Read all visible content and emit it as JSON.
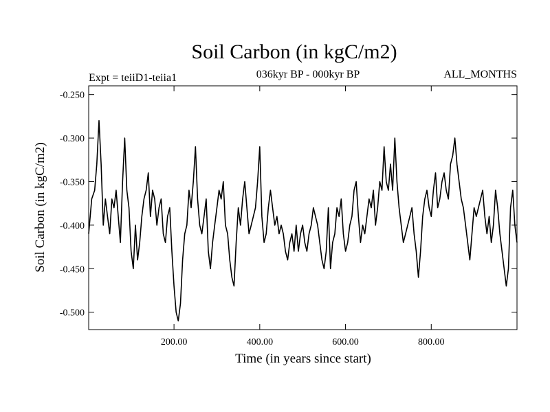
{
  "chart_data": {
    "type": "line",
    "title": "Soil Carbon (in kgC/m2)",
    "subtitle_left": "Expt = teiiD1-teiia1",
    "subtitle_center": "036kyr BP - 000kyr BP",
    "subtitle_right": "ALL_MONTHS",
    "xlabel": "Time (in years since start)",
    "ylabel": "Soil Carbon (in kgC/m2)",
    "xlim": [
      1,
      1000
    ],
    "ylim": [
      -0.52,
      -0.24
    ],
    "xticks": [
      200,
      400,
      600,
      800
    ],
    "xtick_labels": [
      "200.00",
      "400.00",
      "600.00",
      "800.00"
    ],
    "yticks": [
      -0.25,
      -0.3,
      -0.35,
      -0.4,
      -0.45,
      -0.5
    ],
    "ytick_labels": [
      "-0.250",
      "-0.300",
      "-0.350",
      "-0.400",
      "-0.450",
      "-0.500"
    ],
    "grid": false,
    "series": [
      {
        "color": "#000000",
        "x": [
          1,
          8,
          15,
          20,
          25,
          30,
          35,
          40,
          45,
          50,
          55,
          60,
          65,
          70,
          75,
          80,
          85,
          90,
          95,
          100,
          105,
          110,
          115,
          120,
          125,
          130,
          135,
          140,
          145,
          150,
          155,
          160,
          165,
          170,
          175,
          180,
          185,
          190,
          195,
          200,
          205,
          210,
          215,
          220,
          225,
          230,
          235,
          240,
          245,
          250,
          255,
          260,
          265,
          270,
          275,
          280,
          285,
          290,
          295,
          300,
          305,
          310,
          315,
          320,
          325,
          330,
          335,
          340,
          345,
          350,
          355,
          360,
          365,
          370,
          375,
          380,
          385,
          390,
          395,
          400,
          405,
          410,
          415,
          420,
          425,
          430,
          435,
          440,
          445,
          450,
          455,
          460,
          465,
          470,
          475,
          480,
          485,
          490,
          495,
          500,
          505,
          510,
          515,
          520,
          525,
          530,
          535,
          540,
          545,
          550,
          555,
          560,
          565,
          570,
          575,
          580,
          585,
          590,
          595,
          600,
          605,
          610,
          615,
          620,
          625,
          630,
          635,
          640,
          645,
          650,
          655,
          660,
          665,
          670,
          675,
          680,
          685,
          690,
          695,
          700,
          705,
          710,
          715,
          720,
          725,
          730,
          735,
          740,
          745,
          750,
          755,
          760,
          765,
          770,
          775,
          780,
          785,
          790,
          795,
          800,
          805,
          810,
          815,
          820,
          825,
          830,
          835,
          840,
          845,
          850,
          855,
          860,
          865,
          870,
          875,
          880,
          885,
          890,
          895,
          900,
          905,
          910,
          915,
          920,
          925,
          930,
          935,
          940,
          945,
          950,
          955,
          960,
          965,
          970,
          975,
          980,
          985,
          990,
          995,
          1000
        ],
        "y": [
          -0.41,
          -0.37,
          -0.36,
          -0.33,
          -0.28,
          -0.33,
          -0.4,
          -0.37,
          -0.39,
          -0.41,
          -0.37,
          -0.38,
          -0.36,
          -0.39,
          -0.42,
          -0.35,
          -0.3,
          -0.36,
          -0.38,
          -0.43,
          -0.45,
          -0.4,
          -0.44,
          -0.42,
          -0.39,
          -0.37,
          -0.36,
          -0.34,
          -0.39,
          -0.36,
          -0.37,
          -0.4,
          -0.38,
          -0.37,
          -0.41,
          -0.42,
          -0.39,
          -0.38,
          -0.43,
          -0.47,
          -0.5,
          -0.51,
          -0.49,
          -0.44,
          -0.41,
          -0.4,
          -0.36,
          -0.38,
          -0.35,
          -0.31,
          -0.37,
          -0.4,
          -0.41,
          -0.39,
          -0.37,
          -0.43,
          -0.45,
          -0.42,
          -0.4,
          -0.38,
          -0.36,
          -0.37,
          -0.35,
          -0.4,
          -0.41,
          -0.44,
          -0.46,
          -0.47,
          -0.42,
          -0.38,
          -0.4,
          -0.37,
          -0.35,
          -0.38,
          -0.41,
          -0.4,
          -0.39,
          -0.38,
          -0.35,
          -0.31,
          -0.39,
          -0.42,
          -0.41,
          -0.38,
          -0.36,
          -0.38,
          -0.4,
          -0.39,
          -0.41,
          -0.4,
          -0.41,
          -0.43,
          -0.44,
          -0.42,
          -0.41,
          -0.43,
          -0.4,
          -0.43,
          -0.41,
          -0.4,
          -0.42,
          -0.43,
          -0.41,
          -0.4,
          -0.38,
          -0.39,
          -0.4,
          -0.42,
          -0.44,
          -0.45,
          -0.43,
          -0.38,
          -0.45,
          -0.42,
          -0.41,
          -0.38,
          -0.39,
          -0.37,
          -0.41,
          -0.43,
          -0.42,
          -0.4,
          -0.39,
          -0.36,
          -0.35,
          -0.39,
          -0.42,
          -0.4,
          -0.41,
          -0.39,
          -0.37,
          -0.38,
          -0.36,
          -0.4,
          -0.38,
          -0.35,
          -0.36,
          -0.31,
          -0.35,
          -0.36,
          -0.33,
          -0.36,
          -0.3,
          -0.35,
          -0.38,
          -0.4,
          -0.42,
          -0.41,
          -0.4,
          -0.39,
          -0.38,
          -0.41,
          -0.43,
          -0.46,
          -0.43,
          -0.39,
          -0.37,
          -0.36,
          -0.38,
          -0.39,
          -0.36,
          -0.34,
          -0.38,
          -0.37,
          -0.35,
          -0.34,
          -0.36,
          -0.37,
          -0.33,
          -0.32,
          -0.3,
          -0.33,
          -0.35,
          -0.37,
          -0.38,
          -0.4,
          -0.42,
          -0.44,
          -0.41,
          -0.38,
          -0.39,
          -0.38,
          -0.37,
          -0.36,
          -0.39,
          -0.41,
          -0.39,
          -0.42,
          -0.4,
          -0.36,
          -0.38,
          -0.41,
          -0.43,
          -0.45,
          -0.47,
          -0.45,
          -0.38,
          -0.36,
          -0.4,
          -0.42
        ]
      }
    ]
  }
}
